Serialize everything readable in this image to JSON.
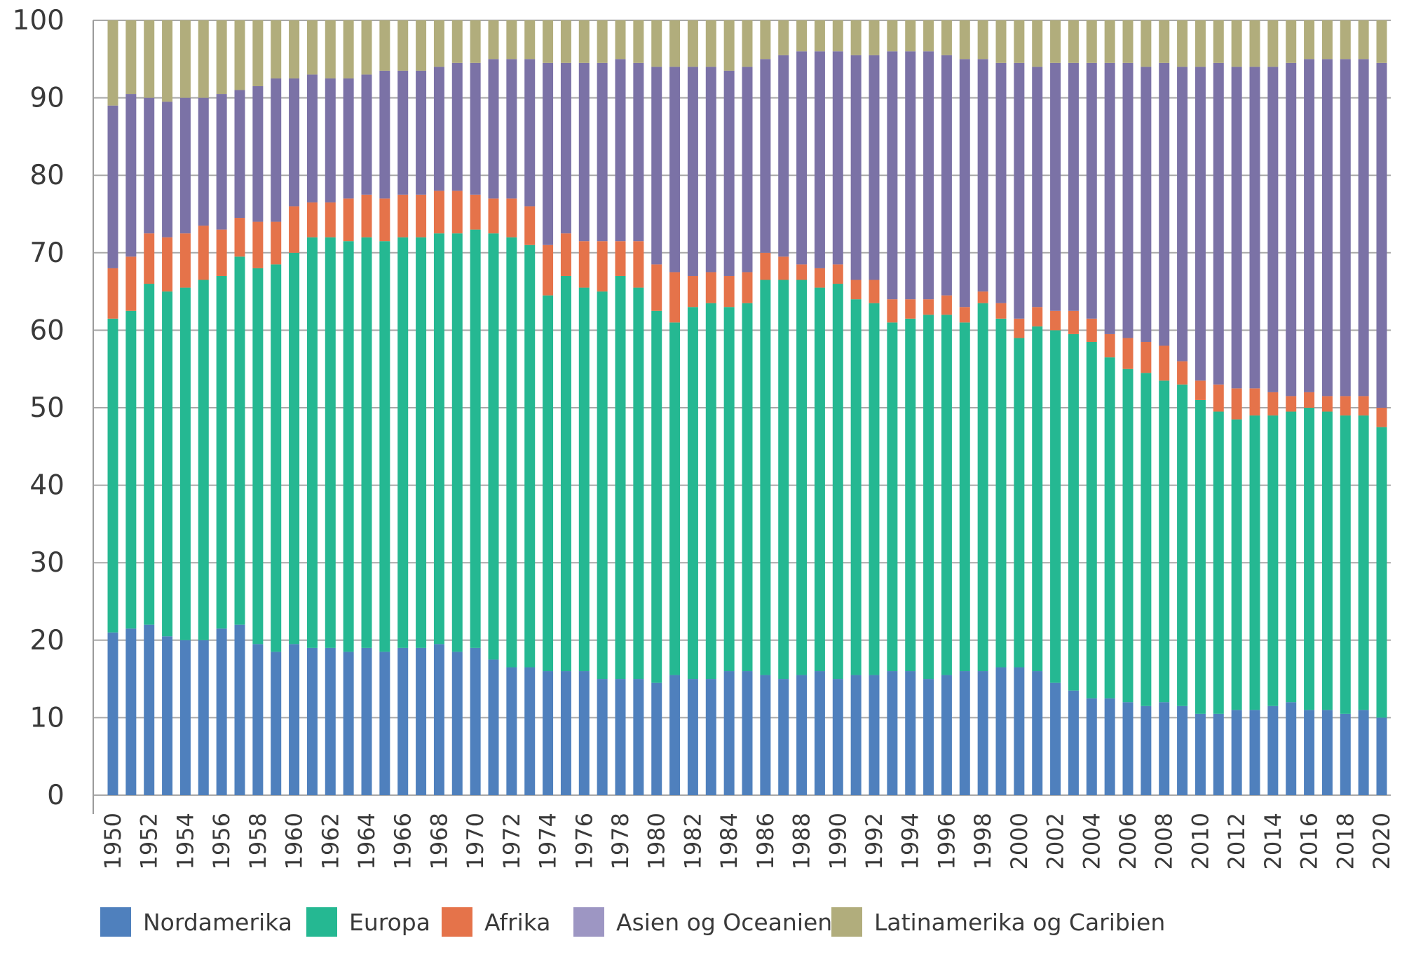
{
  "chart_data": {
    "type": "bar",
    "stacked": true,
    "title": "",
    "xlabel": "",
    "ylabel": "",
    "ylim": [
      0,
      100
    ],
    "y_ticks": [
      0,
      10,
      20,
      30,
      40,
      50,
      60,
      70,
      80,
      90,
      100
    ],
    "x_tick_step": 2,
    "grid": "horizontal",
    "legend_position": "bottom",
    "categories": [
      1950,
      1951,
      1952,
      1953,
      1954,
      1955,
      1956,
      1957,
      1958,
      1959,
      1960,
      1961,
      1962,
      1963,
      1964,
      1965,
      1966,
      1967,
      1968,
      1969,
      1970,
      1971,
      1972,
      1973,
      1974,
      1975,
      1976,
      1977,
      1978,
      1979,
      1980,
      1981,
      1982,
      1983,
      1984,
      1985,
      1986,
      1987,
      1988,
      1989,
      1990,
      1991,
      1992,
      1993,
      1994,
      1995,
      1996,
      1997,
      1998,
      1999,
      2000,
      2001,
      2002,
      2003,
      2004,
      2005,
      2006,
      2007,
      2008,
      2009,
      2010,
      2011,
      2012,
      2013,
      2014,
      2015,
      2016,
      2017,
      2018,
      2019,
      2020
    ],
    "series": [
      {
        "name": "Nordamerika",
        "color": "#4f80bd",
        "legend_color": "#4f80bd",
        "values": [
          21,
          21.5,
          22,
          20.5,
          20,
          20,
          21.5,
          22,
          19.5,
          18.5,
          19.5,
          19,
          19,
          18.5,
          19,
          18.5,
          19,
          19,
          19.5,
          18.5,
          19,
          17.5,
          16.5,
          16.5,
          16,
          16,
          16,
          15,
          15,
          15,
          14.5,
          15.5,
          15,
          15,
          16,
          16,
          15.5,
          15,
          15.5,
          16,
          15,
          15.5,
          15.5,
          16,
          16,
          15,
          15.5,
          16,
          16,
          16.5,
          16.5,
          16,
          14.5,
          13.5,
          12.5,
          12.5,
          12,
          11.5,
          12,
          11.5,
          10.5,
          10.5,
          11,
          11,
          11.5,
          12,
          11,
          11,
          10.5,
          11,
          10
        ]
      },
      {
        "name": "Europa",
        "color": "#25b892",
        "legend_color": "#25b892",
        "values": [
          40.5,
          41,
          44,
          44.5,
          45.5,
          46.5,
          45.5,
          47.5,
          48.5,
          50,
          50.5,
          53,
          53,
          53,
          53,
          53,
          53,
          53,
          53,
          54,
          54,
          55,
          55.5,
          54.5,
          48.5,
          51,
          49.5,
          50,
          52,
          50.5,
          48,
          45.5,
          48,
          48.5,
          47,
          47.5,
          51,
          51.5,
          51,
          49.5,
          51,
          48.5,
          48,
          45,
          45.5,
          47,
          46.5,
          45,
          47.5,
          45,
          42.5,
          44.5,
          45.5,
          46,
          46,
          44,
          43,
          43,
          41.5,
          41.5,
          40.5,
          39,
          37.5,
          38,
          37.5,
          37.5,
          39,
          38.5,
          38.5,
          38,
          37.5
        ]
      },
      {
        "name": "Afrika",
        "color": "#e5734a",
        "legend_color": "#e5734a",
        "values": [
          6.5,
          7,
          6.5,
          7,
          7,
          7,
          6,
          5,
          6,
          5.5,
          6,
          4.5,
          4.5,
          5.5,
          5.5,
          5.5,
          5.5,
          5.5,
          5.5,
          5.5,
          4.5,
          4.5,
          5,
          5,
          6.5,
          5.5,
          6,
          6.5,
          4.5,
          6,
          6,
          6.5,
          4,
          4,
          4,
          4,
          3.5,
          3,
          2,
          2.5,
          2.5,
          2.5,
          3,
          3,
          2.5,
          2,
          2.5,
          2,
          1.5,
          2,
          2.5,
          2.5,
          2.5,
          3,
          3,
          3,
          4,
          4,
          4.5,
          3,
          2.5,
          3.5,
          4,
          3.5,
          3,
          2,
          2,
          2,
          2.5,
          2.5,
          2.5
        ]
      },
      {
        "name": "Asien og Oceanien",
        "color": "#7b72a6",
        "legend_color": "#9d96c3",
        "values": [
          21,
          21,
          17.5,
          17.5,
          17.5,
          16.5,
          17.5,
          16.5,
          17.5,
          18.5,
          16.5,
          16.5,
          16,
          15.5,
          15.5,
          16.5,
          16,
          16,
          16,
          16.5,
          17,
          18,
          18,
          19,
          23.5,
          22,
          23,
          23,
          23.5,
          23,
          25.5,
          26.5,
          27,
          26.5,
          26.5,
          26.5,
          25,
          26,
          27.5,
          28,
          27.5,
          29,
          29,
          32,
          32,
          32,
          31,
          32,
          30,
          31,
          33,
          31,
          32,
          32,
          33,
          35,
          35.5,
          35.5,
          36.5,
          38,
          40.5,
          41.5,
          41.5,
          41.5,
          42,
          43,
          43,
          43.5,
          43.5,
          43.5,
          44.5
        ]
      },
      {
        "name": "Latinamerika og Caribien",
        "color": "#b1ad7c",
        "legend_color": "#b1ad7c",
        "values": [
          11,
          9.5,
          10,
          10.5,
          10,
          10,
          9.5,
          9,
          8.5,
          7.5,
          7.5,
          7,
          7.5,
          7.5,
          7,
          6.5,
          6.5,
          6.5,
          6,
          5.5,
          5.5,
          5,
          5,
          5,
          5.5,
          5.5,
          5.5,
          5.5,
          5,
          5.5,
          6,
          6,
          6,
          6,
          6.5,
          6,
          5,
          4.5,
          4,
          4,
          4,
          4.5,
          4.5,
          4,
          4,
          4,
          4.5,
          5,
          5,
          5.5,
          5.5,
          6,
          5.5,
          5.5,
          5.5,
          5.5,
          5.5,
          6,
          5.5,
          6,
          6,
          5.5,
          6,
          6,
          6,
          5.5,
          5,
          5,
          5,
          5,
          5.5
        ]
      }
    ]
  }
}
